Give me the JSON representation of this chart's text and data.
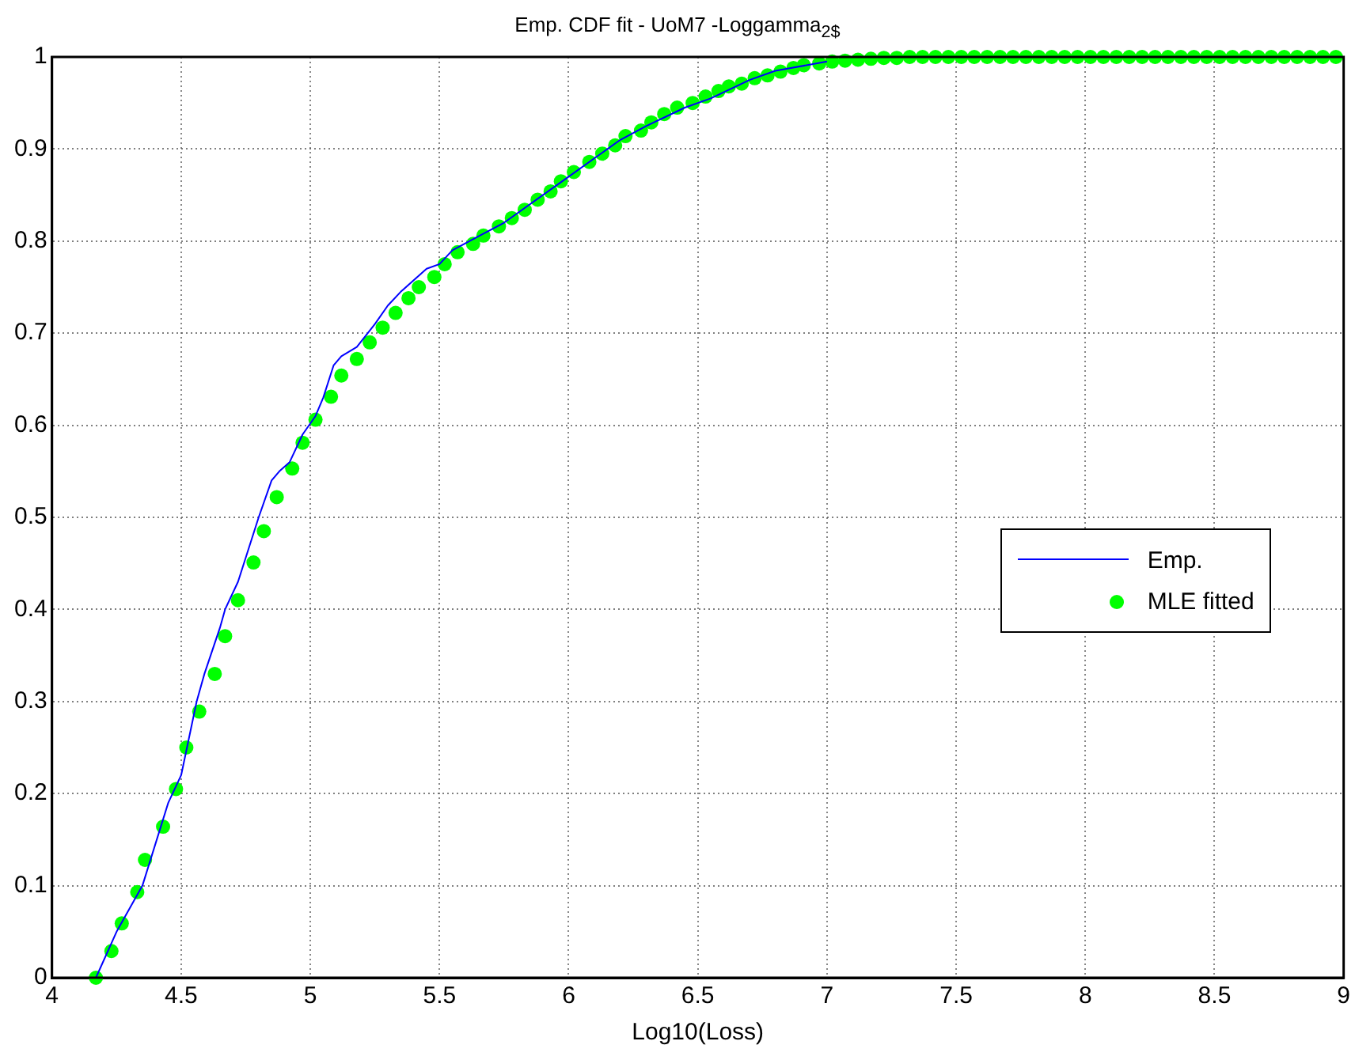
{
  "chart_data": {
    "type": "line",
    "title": "Emp. CDF fit - UoM7 -Loggamma$_{2$}$",
    "xlabel": "Log10(Loss)",
    "xlim": [
      4,
      9
    ],
    "xticks": [
      4,
      4.5,
      5,
      5.5,
      6,
      6.5,
      7,
      7.5,
      8,
      8.5,
      9
    ],
    "ylim": [
      0,
      1
    ],
    "yticks": [
      0,
      0.1,
      0.2,
      0.3,
      0.4,
      0.5,
      0.6,
      0.7,
      0.8,
      0.9,
      1
    ],
    "grid": true,
    "legend": "right",
    "series": [
      {
        "name": "Emp.",
        "type": "line",
        "color": "#0000ff",
        "marker": "none",
        "line_style": "solid",
        "x": [
          4.17,
          4.25,
          4.35,
          4.45,
          4.5,
          4.56,
          4.59,
          4.65,
          4.67,
          4.72,
          4.8,
          4.85,
          4.88,
          4.92,
          4.97,
          5.02,
          5.05,
          5.09,
          5.12,
          5.18,
          5.25,
          5.3,
          5.35,
          5.45,
          5.5,
          5.55,
          5.65,
          5.75,
          5.85,
          6.0,
          6.1,
          6.2,
          6.3,
          6.45,
          6.55,
          6.7,
          6.8,
          7.0
        ],
        "values": [
          0,
          0.05,
          0.1,
          0.19,
          0.22,
          0.3,
          0.33,
          0.38,
          0.4,
          0.43,
          0.5,
          0.54,
          0.55,
          0.56,
          0.59,
          0.61,
          0.63,
          0.665,
          0.675,
          0.685,
          0.71,
          0.73,
          0.745,
          0.77,
          0.775,
          0.79,
          0.805,
          0.82,
          0.84,
          0.87,
          0.89,
          0.91,
          0.925,
          0.945,
          0.955,
          0.975,
          0.985,
          0.995
        ]
      },
      {
        "name": "MLE fitted",
        "type": "scatter",
        "color": "#00ff00",
        "marker": "circle",
        "x": [
          4.17,
          4.23,
          4.27,
          4.33,
          4.36,
          4.43,
          4.48,
          4.52,
          4.57,
          4.63,
          4.67,
          4.72,
          4.78,
          4.82,
          4.87,
          4.93,
          4.97,
          5.02,
          5.08,
          5.12,
          5.18,
          5.23,
          5.28,
          5.33,
          5.38,
          5.42,
          5.48,
          5.52,
          5.57,
          5.63,
          5.67,
          5.73,
          5.78,
          5.83,
          5.88,
          5.93,
          5.97,
          6.02,
          6.08,
          6.13,
          6.18,
          6.22,
          6.28,
          6.32,
          6.37,
          6.42,
          6.48,
          6.53,
          6.58,
          6.62,
          6.67,
          6.72,
          6.77,
          6.82,
          6.87,
          6.91,
          6.97,
          7.02,
          7.07,
          7.12,
          7.17,
          7.22,
          7.27,
          7.32,
          7.37,
          7.42,
          7.47,
          7.52,
          7.57,
          7.62,
          7.67,
          7.72,
          7.77,
          7.82,
          7.87,
          7.92,
          7.97,
          8.02,
          8.07,
          8.12,
          8.17,
          8.22,
          8.27,
          8.32,
          8.37,
          8.42,
          8.47,
          8.52,
          8.57,
          8.62,
          8.67,
          8.72,
          8.77,
          8.82,
          8.87,
          8.92,
          8.97
        ],
        "values": [
          0,
          0.029,
          0.059,
          0.093,
          0.128,
          0.164,
          0.205,
          0.25,
          0.289,
          0.33,
          0.371,
          0.41,
          0.451,
          0.485,
          0.522,
          0.553,
          0.581,
          0.606,
          0.631,
          0.654,
          0.672,
          0.69,
          0.706,
          0.722,
          0.738,
          0.75,
          0.761,
          0.775,
          0.788,
          0.797,
          0.806,
          0.816,
          0.825,
          0.834,
          0.845,
          0.854,
          0.865,
          0.875,
          0.886,
          0.895,
          0.904,
          0.914,
          0.92,
          0.929,
          0.938,
          0.945,
          0.95,
          0.957,
          0.963,
          0.968,
          0.971,
          0.977,
          0.98,
          0.984,
          0.988,
          0.991,
          0.993,
          0.995,
          0.996,
          0.997,
          0.998,
          0.999,
          0.999,
          1,
          1,
          1,
          1,
          1,
          1,
          1,
          1,
          1,
          1,
          1,
          1,
          1,
          1,
          1,
          1,
          1,
          1,
          1,
          1,
          1,
          1,
          1,
          1,
          1,
          1,
          1,
          1,
          1,
          1,
          1,
          1,
          1,
          1
        ]
      }
    ]
  }
}
